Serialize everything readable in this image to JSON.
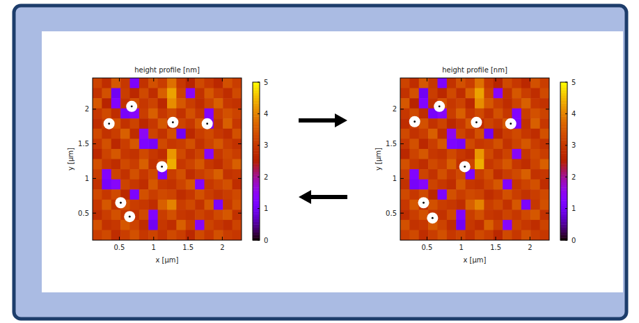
{
  "chart_data": [
    {
      "type": "heatmap",
      "title": "height profile [nm]",
      "x_label": "x [µm]",
      "y_label": "y [µm]",
      "xlim": [
        0.11,
        2.28
      ],
      "ylim": [
        0.11,
        2.45
      ],
      "xticks": [
        0.5,
        1,
        1.5,
        2
      ],
      "yticks": [
        0.5,
        1,
        1.5,
        2
      ],
      "cells": [
        [
          3.2,
          2.8,
          3.5,
          3.0,
          1.2,
          2.9,
          3.4,
          3.1,
          3.8,
          3.0,
          2.6,
          3.3,
          3.0,
          2.7,
          3.4,
          3.1
        ],
        [
          2.9,
          3.4,
          1.0,
          3.1,
          2.7,
          3.3,
          2.8,
          3.6,
          4.3,
          3.2,
          1.4,
          2.9,
          3.5,
          3.1,
          2.8,
          3.3
        ],
        [
          3.5,
          2.6,
          1.3,
          2.9,
          3.4,
          3.0,
          3.2,
          2.7,
          4.1,
          3.5,
          3.1,
          2.8,
          3.2,
          3.6,
          3.0,
          2.9
        ],
        [
          3.0,
          3.3,
          2.8,
          1.1,
          1.4,
          3.1,
          3.6,
          3.0,
          3.3,
          2.9,
          3.4,
          3.0,
          1.3,
          3.1,
          3.4,
          3.2
        ],
        [
          2.8,
          3.1,
          3.4,
          2.9,
          3.2,
          2.7,
          3.0,
          3.5,
          2.8,
          3.2,
          3.0,
          3.5,
          1.2,
          2.9,
          3.6,
          3.0
        ],
        [
          3.3,
          2.9,
          3.1,
          3.6,
          2.8,
          1.5,
          3.2,
          2.9,
          3.4,
          1.0,
          2.7,
          3.1,
          3.3,
          3.0,
          2.8,
          3.4
        ],
        [
          3.0,
          3.4,
          2.7,
          3.1,
          3.5,
          1.2,
          1.1,
          3.3,
          3.0,
          3.1,
          3.4,
          2.9,
          3.2,
          3.5,
          3.1,
          2.9
        ],
        [
          2.7,
          3.2,
          3.5,
          3.0,
          2.9,
          3.3,
          3.0,
          2.8,
          4.2,
          3.3,
          2.9,
          3.2,
          1.4,
          3.0,
          3.3,
          3.1
        ],
        [
          3.4,
          3.0,
          2.8,
          3.3,
          3.1,
          3.6,
          2.9,
          3.2,
          4.4,
          3.0,
          3.2,
          3.5,
          3.0,
          2.8,
          3.2,
          3.6
        ],
        [
          3.1,
          1.3,
          3.2,
          2.9,
          3.4,
          3.0,
          3.3,
          1.2,
          3.1,
          3.4,
          2.8,
          3.1,
          3.3,
          3.6,
          2.9,
          3.0
        ],
        [
          2.9,
          1.1,
          1.4,
          3.2,
          3.0,
          2.8,
          3.5,
          3.0,
          2.9,
          3.2,
          3.5,
          1.3,
          3.0,
          3.2,
          3.4,
          2.8
        ],
        [
          3.3,
          3.0,
          3.3,
          2.7,
          1.2,
          3.4,
          3.1,
          3.3,
          3.2,
          2.8,
          3.0,
          3.4,
          3.1,
          2.9,
          3.1,
          3.3
        ],
        [
          3.0,
          3.5,
          2.9,
          3.4,
          3.1,
          3.0,
          2.8,
          3.6,
          4.0,
          3.1,
          3.3,
          2.9,
          3.5,
          1.2,
          3.0,
          3.4
        ],
        [
          2.8,
          3.1,
          3.4,
          3.0,
          2.9,
          3.3,
          1.3,
          3.1,
          3.4,
          3.0,
          2.9,
          3.2,
          3.0,
          3.3,
          3.5,
          2.9
        ],
        [
          3.4,
          2.9,
          3.0,
          3.5,
          3.2,
          2.8,
          1.0,
          3.0,
          2.8,
          3.6,
          3.1,
          1.4,
          3.2,
          3.0,
          2.8,
          3.2
        ],
        [
          3.1,
          3.3,
          2.8,
          3.1,
          3.4,
          3.0,
          3.2,
          2.9,
          3.3,
          3.1,
          2.7,
          3.3,
          3.0,
          3.4,
          3.1,
          3.0
        ]
      ],
      "color_range": [
        0,
        5
      ],
      "color_ticks": [
        0,
        1,
        2,
        3,
        4,
        5
      ],
      "series": [
        {
          "type": "scatter",
          "color": "#ffffff",
          "marker": "circle",
          "x": [
            0.35,
            0.68,
            1.28,
            1.78,
            1.12,
            0.52,
            0.65
          ],
          "values": [
            1.79,
            2.04,
            1.81,
            1.79,
            1.17,
            0.65,
            0.45
          ]
        }
      ]
    },
    {
      "type": "heatmap",
      "title": "height profile [nm]",
      "x_label": "x [µm]",
      "y_label": "y [µm]",
      "xlim": [
        0.11,
        2.28
      ],
      "ylim": [
        0.11,
        2.45
      ],
      "xticks": [
        0.5,
        1,
        1.5,
        2
      ],
      "yticks": [
        0.5,
        1,
        1.5,
        2
      ],
      "cells": [
        [
          3.2,
          2.8,
          3.5,
          3.0,
          1.2,
          2.9,
          3.4,
          3.1,
          3.8,
          3.0,
          2.6,
          3.3,
          3.0,
          2.7,
          3.4,
          3.1
        ],
        [
          2.9,
          3.4,
          1.0,
          3.1,
          2.7,
          3.3,
          2.8,
          3.6,
          4.3,
          3.2,
          1.4,
          2.9,
          3.5,
          3.1,
          2.8,
          3.3
        ],
        [
          3.5,
          2.6,
          1.3,
          2.9,
          3.4,
          3.0,
          3.2,
          2.7,
          4.1,
          3.5,
          3.1,
          2.8,
          3.2,
          3.6,
          3.0,
          2.9
        ],
        [
          3.0,
          3.3,
          2.8,
          1.1,
          1.4,
          3.1,
          3.6,
          3.0,
          3.3,
          2.9,
          3.4,
          3.0,
          1.3,
          3.1,
          3.4,
          3.2
        ],
        [
          2.8,
          3.1,
          3.4,
          2.9,
          3.2,
          2.7,
          3.0,
          3.5,
          2.8,
          3.2,
          3.0,
          3.5,
          1.2,
          2.9,
          3.6,
          3.0
        ],
        [
          3.3,
          2.9,
          3.1,
          3.6,
          2.8,
          1.5,
          3.2,
          2.9,
          3.4,
          1.0,
          2.7,
          3.1,
          3.3,
          3.0,
          2.8,
          3.4
        ],
        [
          3.0,
          3.4,
          2.7,
          3.1,
          3.5,
          1.2,
          1.1,
          3.3,
          3.0,
          3.1,
          3.4,
          2.9,
          3.2,
          3.5,
          3.1,
          2.9
        ],
        [
          2.7,
          3.2,
          3.5,
          3.0,
          2.9,
          3.3,
          3.0,
          2.8,
          4.2,
          3.3,
          2.9,
          3.2,
          1.4,
          3.0,
          3.3,
          3.1
        ],
        [
          3.4,
          3.0,
          2.8,
          3.3,
          3.1,
          3.6,
          2.9,
          3.2,
          4.4,
          3.0,
          3.2,
          3.5,
          3.0,
          2.8,
          3.2,
          3.6
        ],
        [
          3.1,
          1.3,
          3.2,
          2.9,
          3.4,
          3.0,
          3.3,
          1.2,
          3.1,
          3.4,
          2.8,
          3.1,
          3.3,
          3.6,
          2.9,
          3.0
        ],
        [
          2.9,
          1.1,
          1.4,
          3.2,
          3.0,
          2.8,
          3.5,
          3.0,
          2.9,
          3.2,
          3.5,
          1.3,
          3.0,
          3.2,
          3.4,
          2.8
        ],
        [
          3.3,
          3.0,
          3.3,
          2.7,
          1.2,
          3.4,
          3.1,
          3.3,
          3.2,
          2.8,
          3.0,
          3.4,
          3.1,
          2.9,
          3.1,
          3.3
        ],
        [
          3.0,
          3.5,
          2.9,
          3.4,
          3.1,
          3.0,
          2.8,
          3.6,
          4.0,
          3.1,
          3.3,
          2.9,
          3.5,
          1.2,
          3.0,
          3.4
        ],
        [
          2.8,
          3.1,
          3.4,
          3.0,
          2.9,
          3.3,
          1.3,
          3.1,
          3.4,
          3.0,
          2.9,
          3.2,
          3.0,
          3.3,
          3.5,
          2.9
        ],
        [
          3.4,
          2.9,
          3.0,
          3.5,
          3.2,
          2.8,
          1.0,
          3.0,
          2.8,
          3.6,
          3.1,
          1.4,
          3.2,
          3.0,
          2.8,
          3.2
        ],
        [
          3.1,
          3.3,
          2.8,
          3.1,
          3.4,
          3.0,
          3.2,
          2.9,
          3.3,
          3.1,
          2.7,
          3.3,
          3.0,
          3.4,
          3.1,
          3.0
        ]
      ],
      "color_range": [
        0,
        5
      ],
      "color_ticks": [
        0,
        1,
        2,
        3,
        4,
        5
      ],
      "series": [
        {
          "type": "scatter",
          "color": "#ffffff",
          "marker": "circle",
          "x": [
            0.32,
            0.68,
            1.22,
            1.72,
            1.05,
            0.45,
            0.58
          ],
          "values": [
            1.82,
            2.04,
            1.81,
            1.79,
            1.17,
            0.65,
            0.43
          ]
        }
      ]
    }
  ]
}
